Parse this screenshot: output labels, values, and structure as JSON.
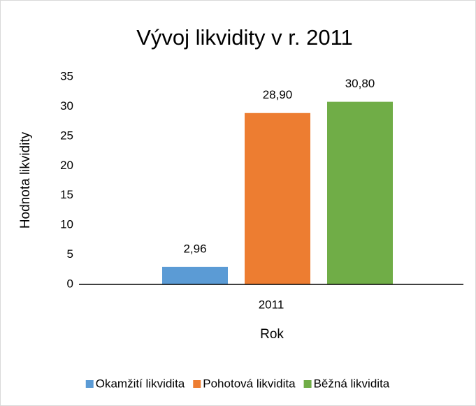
{
  "chart_data": {
    "type": "bar",
    "title": "Vývoj likvidity v r. 2011",
    "x_label": "Rok",
    "y_label": "Hodnota likvidity",
    "categories": [
      "2011"
    ],
    "series": [
      {
        "name": "Okamžití likvidita",
        "color": "#5b9bd5",
        "values": [
          2.96
        ],
        "value_labels": [
          "2,96"
        ]
      },
      {
        "name": "Pohotová likvidita",
        "color": "#ed7d31",
        "values": [
          28.9
        ],
        "value_labels": [
          "28,90"
        ]
      },
      {
        "name": "Běžná likvidita",
        "color": "#70ad47",
        "values": [
          30.8
        ],
        "value_labels": [
          "30,80"
        ]
      }
    ],
    "ylim": [
      0,
      35
    ],
    "yticks": [
      0,
      5,
      10,
      15,
      20,
      25,
      30,
      35
    ],
    "grid": false,
    "legend": "bottom"
  }
}
